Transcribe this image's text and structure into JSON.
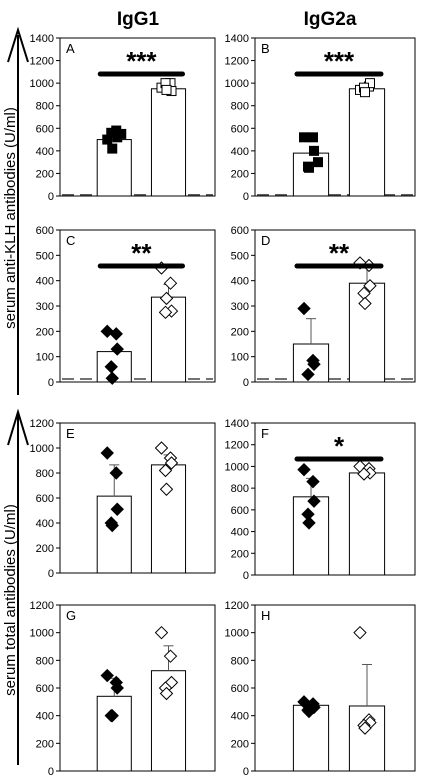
{
  "columns": [
    "IgG1",
    "IgG2a"
  ],
  "y_labels": {
    "top": "serum anti-KLH antibodies (U/ml)",
    "bottom": "serum total antibodies (U/ml)"
  },
  "chart_data": [
    {
      "type": "bar",
      "letter": "A",
      "ylim": [
        0,
        1400
      ],
      "yticks": [
        0,
        200,
        400,
        600,
        800,
        1000,
        1200,
        1400
      ],
      "values": [
        500,
        950
      ],
      "errors": [
        null,
        null
      ],
      "filled": true,
      "marker": "square",
      "points": [
        [
          500,
          580,
          520,
          560,
          420,
          550
        ],
        [
          960,
          1000,
          930,
          1000,
          940
        ]
      ],
      "baseline": 10,
      "sig": "***"
    },
    {
      "type": "bar",
      "letter": "B",
      "ylim": [
        0,
        1400
      ],
      "yticks": [
        0,
        200,
        400,
        600,
        800,
        1000,
        1200,
        1400
      ],
      "values": [
        380,
        950
      ],
      "errors": [
        null,
        null
      ],
      "filled": true,
      "marker": "square",
      "points": [
        [
          520,
          520,
          400,
          260,
          250,
          300
        ],
        [
          940,
          970,
          1000,
          960,
          920
        ]
      ],
      "baseline": 10,
      "sig": "***"
    },
    {
      "type": "bar",
      "letter": "C",
      "ylim": [
        0,
        600
      ],
      "yticks": [
        0,
        100,
        200,
        300,
        400,
        500,
        600
      ],
      "values": [
        120,
        335
      ],
      "errors": [
        null,
        50
      ],
      "filled": false,
      "marker": "diamond",
      "points": [
        [
          200,
          190,
          130,
          60,
          15
        ],
        [
          450,
          390,
          280,
          275,
          330
        ]
      ],
      "baseline": 12,
      "sig": "**"
    },
    {
      "type": "bar",
      "letter": "D",
      "ylim": [
        0,
        600
      ],
      "yticks": [
        0,
        100,
        200,
        300,
        400,
        500,
        600
      ],
      "values": [
        150,
        390
      ],
      "errors": [
        100,
        70
      ],
      "filled": false,
      "marker": "diamond",
      "points": [
        [
          290,
          85,
          70,
          30
        ],
        [
          470,
          460,
          380,
          350,
          310
        ]
      ],
      "baseline": 12,
      "sig": "**"
    },
    {
      "type": "bar",
      "letter": "E",
      "ylim": [
        0,
        1200
      ],
      "yticks": [
        0,
        200,
        400,
        600,
        800,
        1000,
        1200
      ],
      "values": [
        615,
        865
      ],
      "errors": [
        250,
        80
      ],
      "filled": false,
      "marker": "diamond",
      "points": [
        [
          960,
          800,
          510,
          400,
          380
        ],
        [
          1000,
          920,
          880,
          820,
          670
        ]
      ],
      "baseline": null,
      "sig": ""
    },
    {
      "type": "bar",
      "letter": "F",
      "ylim": [
        0,
        1400
      ],
      "yticks": [
        0,
        200,
        400,
        600,
        800,
        1000,
        1200,
        1400
      ],
      "values": [
        720,
        940
      ],
      "errors": [
        170,
        40
      ],
      "filled": false,
      "marker": "diamond",
      "points": [
        [
          970,
          860,
          680,
          560,
          480
        ],
        [
          1000,
          980,
          940,
          930
        ]
      ],
      "baseline": null,
      "sig": "*"
    },
    {
      "type": "bar",
      "letter": "G",
      "ylim": [
        0,
        1200
      ],
      "yticks": [
        0,
        200,
        400,
        600,
        800,
        1000,
        1200
      ],
      "values": [
        540,
        725
      ],
      "errors": [
        130,
        180
      ],
      "filled": false,
      "marker": "diamond",
      "points": [
        [
          690,
          640,
          600,
          400,
          400
        ],
        [
          1000,
          830,
          640,
          600,
          560
        ]
      ],
      "baseline": null,
      "sig": ""
    },
    {
      "type": "bar",
      "letter": "H",
      "ylim": [
        0,
        1200
      ],
      "yticks": [
        0,
        200,
        400,
        600,
        800,
        1000,
        1200
      ],
      "values": [
        475,
        470
      ],
      "errors": [
        null,
        300
      ],
      "filled": false,
      "marker": "diamond",
      "points": [
        [
          500,
          485,
          460,
          440,
          430
        ],
        [
          1000,
          370,
          350,
          330,
          310
        ]
      ],
      "baseline": null,
      "sig": ""
    }
  ]
}
